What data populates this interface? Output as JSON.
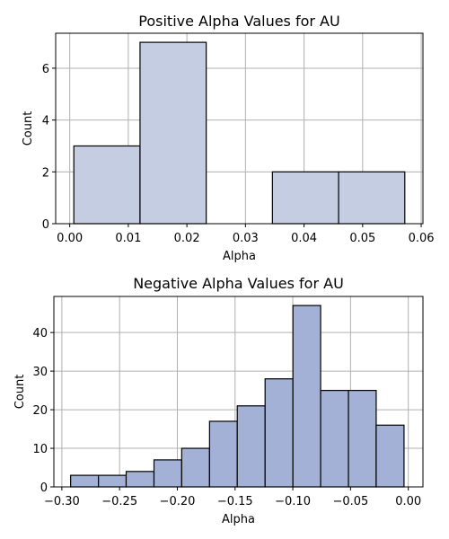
{
  "chart_data": [
    {
      "type": "bar",
      "title": "Positive Alpha Values for AU",
      "xlabel": "Alpha",
      "ylabel": "Count",
      "color": "#c4cde1",
      "grid": true,
      "xlim": [
        -0.0024,
        0.0603
      ],
      "ylim": [
        0,
        7.35
      ],
      "xticks": [
        0.0,
        0.01,
        0.02,
        0.03,
        0.04,
        0.05,
        0.06
      ],
      "xtick_labels": [
        "0.00",
        "0.01",
        "0.02",
        "0.03",
        "0.04",
        "0.05",
        "0.06"
      ],
      "yticks": [
        0,
        2,
        4,
        6
      ],
      "ytick_labels": [
        "0",
        "2",
        "4",
        "6"
      ],
      "bins": [
        {
          "x0": 0.0007,
          "x1": 0.012,
          "count": 3
        },
        {
          "x0": 0.012,
          "x1": 0.0233,
          "count": 7
        },
        {
          "x0": 0.0233,
          "x1": 0.0346,
          "count": 0
        },
        {
          "x0": 0.0346,
          "x1": 0.0459,
          "count": 2
        },
        {
          "x0": 0.0459,
          "x1": 0.0572,
          "count": 2
        }
      ]
    },
    {
      "type": "bar",
      "title": "Negative Alpha Values for AU",
      "xlabel": "Alpha",
      "ylabel": "Count",
      "color": "#a3b1d6",
      "grid": true,
      "xlim": [
        -0.3069,
        0.0127
      ],
      "ylim": [
        0,
        49.35
      ],
      "xticks": [
        -0.3,
        -0.25,
        -0.2,
        -0.15,
        -0.1,
        -0.05,
        0.0
      ],
      "xtick_labels": [
        "−0.30",
        "−0.25",
        "−0.20",
        "−0.15",
        "−0.10",
        "−0.05",
        "0.00"
      ],
      "yticks": [
        0,
        10,
        20,
        30,
        40
      ],
      "ytick_labels": [
        "0",
        "10",
        "20",
        "30",
        "40"
      ],
      "bins": [
        {
          "x0": -0.2924,
          "x1": -0.2683,
          "count": 3
        },
        {
          "x0": -0.2683,
          "x1": -0.2443,
          "count": 3
        },
        {
          "x0": -0.2443,
          "x1": -0.2202,
          "count": 4
        },
        {
          "x0": -0.2202,
          "x1": -0.1962,
          "count": 7
        },
        {
          "x0": -0.1962,
          "x1": -0.1721,
          "count": 10
        },
        {
          "x0": -0.1721,
          "x1": -0.1481,
          "count": 17
        },
        {
          "x0": -0.1481,
          "x1": -0.124,
          "count": 21
        },
        {
          "x0": -0.124,
          "x1": -0.0999,
          "count": 28
        },
        {
          "x0": -0.0999,
          "x1": -0.0759,
          "count": 47
        },
        {
          "x0": -0.0759,
          "x1": -0.0518,
          "count": 25
        },
        {
          "x0": -0.0518,
          "x1": -0.0278,
          "count": 25
        },
        {
          "x0": -0.0278,
          "x1": -0.0037,
          "count": 16
        }
      ]
    }
  ]
}
